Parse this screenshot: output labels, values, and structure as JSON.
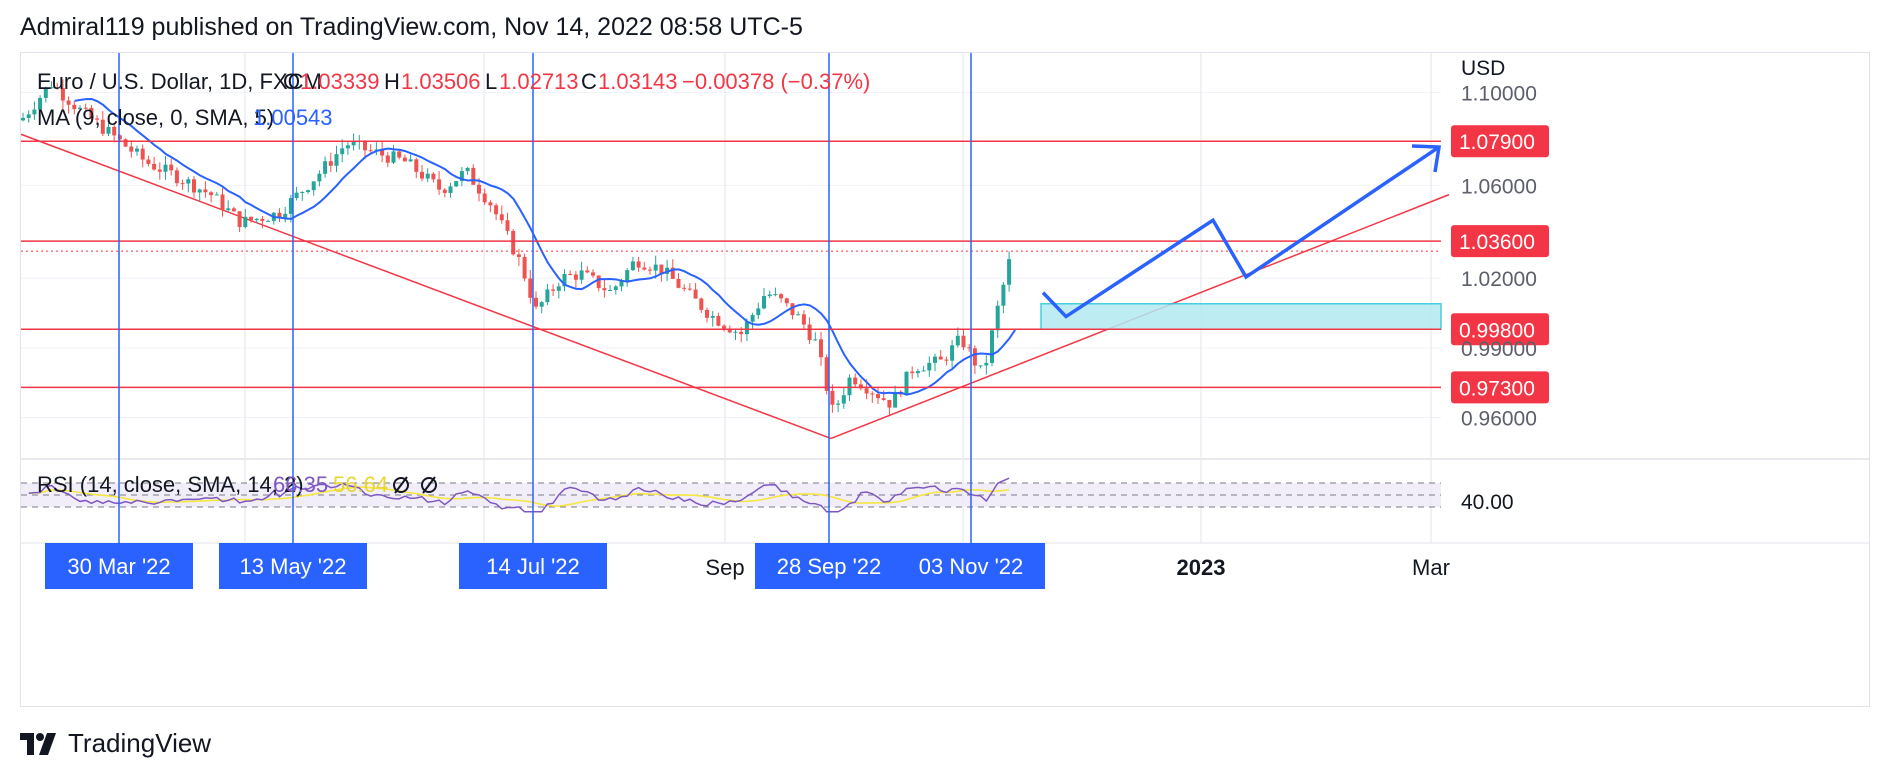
{
  "attribution": "Admiral119 published on TradingView.com, Nov 14, 2022 08:58 UTC-5",
  "brand": "TradingView",
  "legend": {
    "symbol": "Euro / U.S. Dollar, 1D, FXCM",
    "o_label": "O",
    "o_value": "1.03339",
    "h_label": "H",
    "h_value": "1.03506",
    "l_label": "L",
    "l_value": "1.02713",
    "c_label": "C",
    "c_value": "1.03143",
    "change": "−0.00378 (−0.37%)",
    "ma_label": "MA (9, close, 0, SMA, 5)",
    "ma_value": "1.00543",
    "rsi_label": "RSI (14, close, SMA, 14, 2)",
    "rsi_value": "66.35",
    "rsi_ma_value": "56.64"
  },
  "colors": {
    "up": "#26a69a",
    "down": "#ef5350",
    "ma": "#2962ff",
    "level": "#f23645",
    "arrow": "#2962ff",
    "zone": "#b2ebf2",
    "rsi": "#7e57c2",
    "rsi_ma": "#f5e642"
  },
  "chart_data": {
    "type": "candlestick",
    "currency": "USD",
    "y_ticks": [
      "1.10000",
      "1.06000",
      "1.02000",
      "0.99000",
      "0.96000"
    ],
    "ylim": [
      0.943,
      1.117
    ],
    "levels": [
      {
        "label": "1.07900",
        "value": 1.079
      },
      {
        "label": "1.03600",
        "value": 1.036
      },
      {
        "label": "0.99800",
        "value": 0.998
      },
      {
        "label": "0.97300",
        "value": 0.973
      }
    ],
    "x_ticks": [
      "Sep",
      "2023",
      "Mar"
    ],
    "date_markers": [
      "30 Mar '22",
      "13 May '22",
      "14 Jul '22",
      "28 Sep '22",
      "03 Nov '22"
    ],
    "demand_zone": [
      0.998,
      1.009
    ],
    "projection": [
      1.0138,
      1.0035,
      1.045,
      1.0205,
      1.0765
    ],
    "rsi_tick": "40.00",
    "rsi_range": [
      0,
      100
    ],
    "rsi_bands": [
      70,
      50,
      30
    ]
  }
}
